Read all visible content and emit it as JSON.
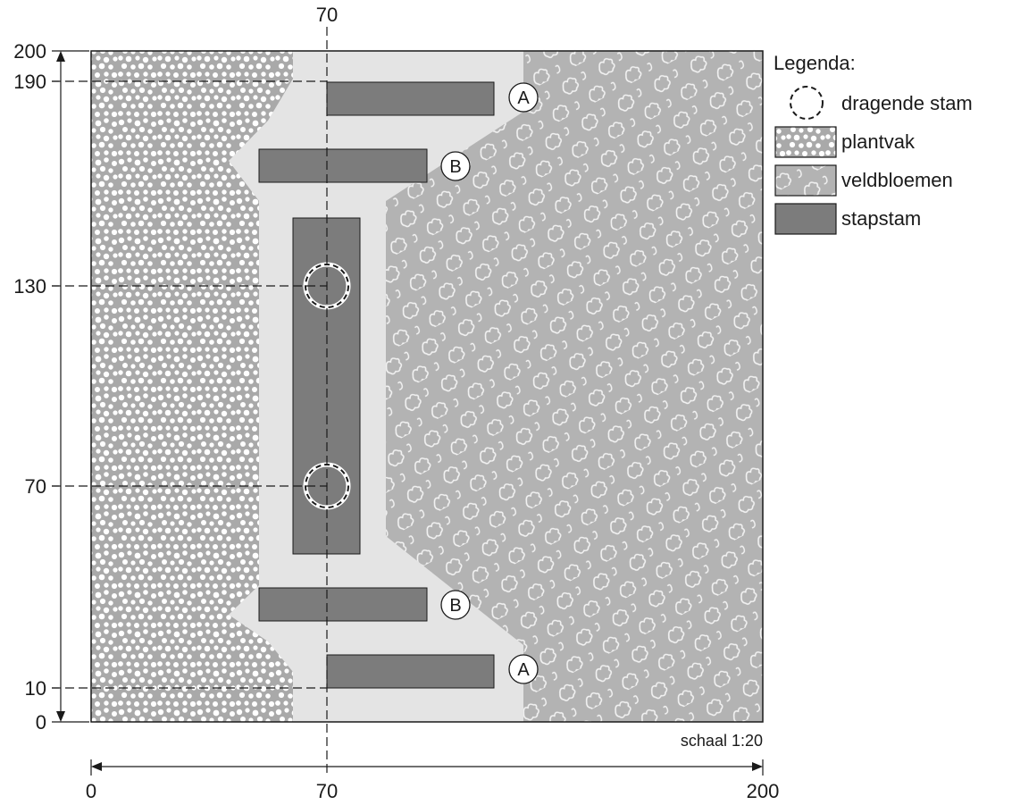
{
  "colors": {
    "background": "#ffffff",
    "plantvak_base": "#a9a9a9",
    "plantvak_dots": "#ffffff",
    "veldbloemen_base": "#b3b3b3",
    "veldbloemen_pattern": "#f2f2f2",
    "pad": "#e4e4e4",
    "stapstam": "#7c7c7c",
    "ink": "#1a1a1a"
  },
  "axes": {
    "x_ticks": [
      "0",
      "70",
      "200"
    ],
    "y_ticks": [
      "0",
      "10",
      "70",
      "130",
      "190",
      "200"
    ],
    "top_label": "70"
  },
  "scale": "schaal 1:20",
  "stems": [
    {
      "label": "A"
    },
    {
      "label": "B"
    },
    {
      "label": "B"
    },
    {
      "label": "A"
    }
  ],
  "legend": {
    "title": "Legenda:",
    "items": [
      {
        "label": "dragende stam",
        "icon": "dashed-circle-icon"
      },
      {
        "label": "plantvak",
        "icon": "plantvak-swatch-icon"
      },
      {
        "label": "veldbloemen",
        "icon": "veldbloemen-swatch-icon"
      },
      {
        "label": "stapstam",
        "icon": "stapstam-swatch-icon"
      }
    ]
  }
}
